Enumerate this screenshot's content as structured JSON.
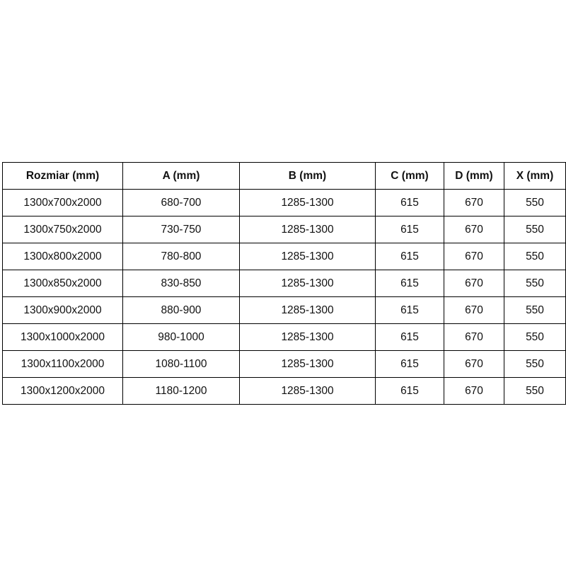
{
  "table": {
    "headers": [
      "Rozmiar (mm)",
      "A (mm)",
      "B (mm)",
      "C (mm)",
      "D (mm)",
      "X (mm)"
    ],
    "rows": [
      [
        "1300x700x2000",
        "680-700",
        "1285-1300",
        "615",
        "670",
        "550"
      ],
      [
        "1300x750x2000",
        "730-750",
        "1285-1300",
        "615",
        "670",
        "550"
      ],
      [
        "1300x800x2000",
        "780-800",
        "1285-1300",
        "615",
        "670",
        "550"
      ],
      [
        "1300x850x2000",
        "830-850",
        "1285-1300",
        "615",
        "670",
        "550"
      ],
      [
        "1300x900x2000",
        "880-900",
        "1285-1300",
        "615",
        "670",
        "550"
      ],
      [
        "1300x1000x2000",
        "980-1000",
        "1285-1300",
        "615",
        "670",
        "550"
      ],
      [
        "1300x1100x2000",
        "1080-1100",
        "1285-1300",
        "615",
        "670",
        "550"
      ],
      [
        "1300x1200x2000",
        "1180-1200",
        "1285-1300",
        "615",
        "670",
        "550"
      ]
    ]
  }
}
